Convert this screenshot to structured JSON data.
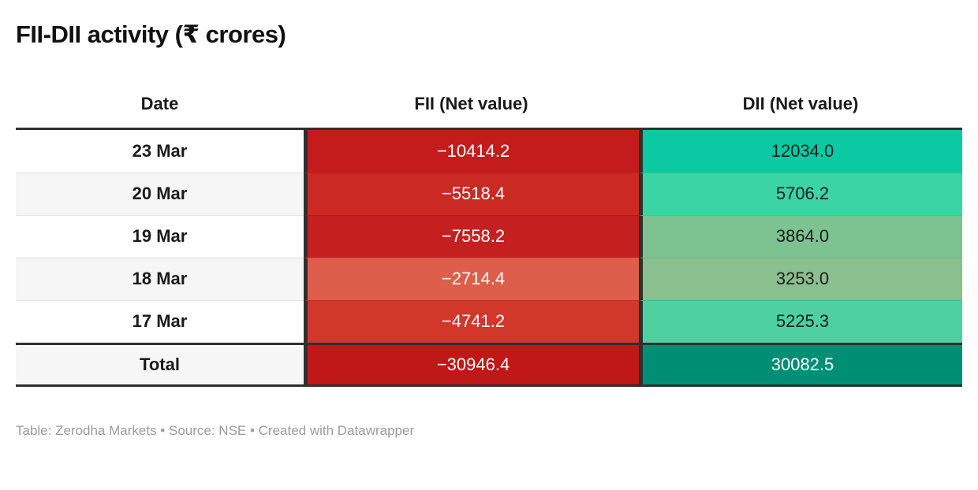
{
  "title": "FII-DII activity (₹ crores)",
  "chart_data": {
    "type": "table",
    "title": "FII-DII activity (₹ crores)",
    "columns": [
      "Date",
      "FII (Net value)",
      "DII (Net value)"
    ],
    "rows": [
      [
        "23 Mar",
        -10414.2,
        12034.0
      ],
      [
        "20 Mar",
        -5518.4,
        5706.2
      ],
      [
        "19 Mar",
        -7558.2,
        3864.0
      ],
      [
        "18 Mar",
        -2714.4,
        3253.0
      ],
      [
        "17 Mar",
        -4741.2,
        5225.3
      ]
    ],
    "total_row": [
      "Total",
      -30946.4,
      30082.5
    ],
    "notes": "Heatmap shading: negative FII values in reds (darker = more negative), positive DII values in greens (more vivid = higher)"
  },
  "table": {
    "header": {
      "date": "Date",
      "fii": "FII (Net value)",
      "dii": "DII (Net value)"
    },
    "rows": [
      {
        "date": "23 Mar",
        "date_bg": "#ffffff",
        "fii": "−10414.2",
        "fii_bg": "#c41c1c",
        "fii_fg": "#ffffff",
        "dii": "12034.0",
        "dii_bg": "#0bc9a3",
        "dii_fg": "#1d1d1d"
      },
      {
        "date": "20 Mar",
        "date_bg": "#f6f6f6",
        "fii": "−5518.4",
        "fii_bg": "#cb2923",
        "fii_fg": "#ffffff",
        "dii": "5706.2",
        "dii_bg": "#3ad5a2",
        "dii_fg": "#1d1d1d"
      },
      {
        "date": "19 Mar",
        "date_bg": "#ffffff",
        "fii": "−7558.2",
        "fii_bg": "#c52020",
        "fii_fg": "#ffffff",
        "dii": "3864.0",
        "dii_bg": "#7dc391",
        "dii_fg": "#1d1d1d"
      },
      {
        "date": "18 Mar",
        "date_bg": "#f6f6f6",
        "fii": "−2714.4",
        "fii_bg": "#dd5e4b",
        "fii_fg": "#ffffff",
        "dii": "3253.0",
        "dii_bg": "#8abf8e",
        "dii_fg": "#1d1d1d"
      },
      {
        "date": "17 Mar",
        "date_bg": "#ffffff",
        "fii": "−4741.2",
        "fii_bg": "#d1382a",
        "fii_fg": "#ffffff",
        "dii": "5225.3",
        "dii_bg": "#4fd0a1",
        "dii_fg": "#1d1d1d"
      }
    ],
    "total": {
      "date": "Total",
      "date_bg": "#f6f6f6",
      "fii": "−30946.4",
      "fii_bg": "#c01717",
      "fii_fg": "#ffffff",
      "dii": "30082.5",
      "dii_bg": "#008e75",
      "dii_fg": "#ffffff"
    }
  },
  "footer": {
    "text": "Table: Zerodha Markets • Source: NSE • Created with Datawrapper"
  },
  "colors": {
    "dark_border": "#2f2f2f",
    "title_text": "#111111",
    "footer_text": "#9b9b9b"
  }
}
